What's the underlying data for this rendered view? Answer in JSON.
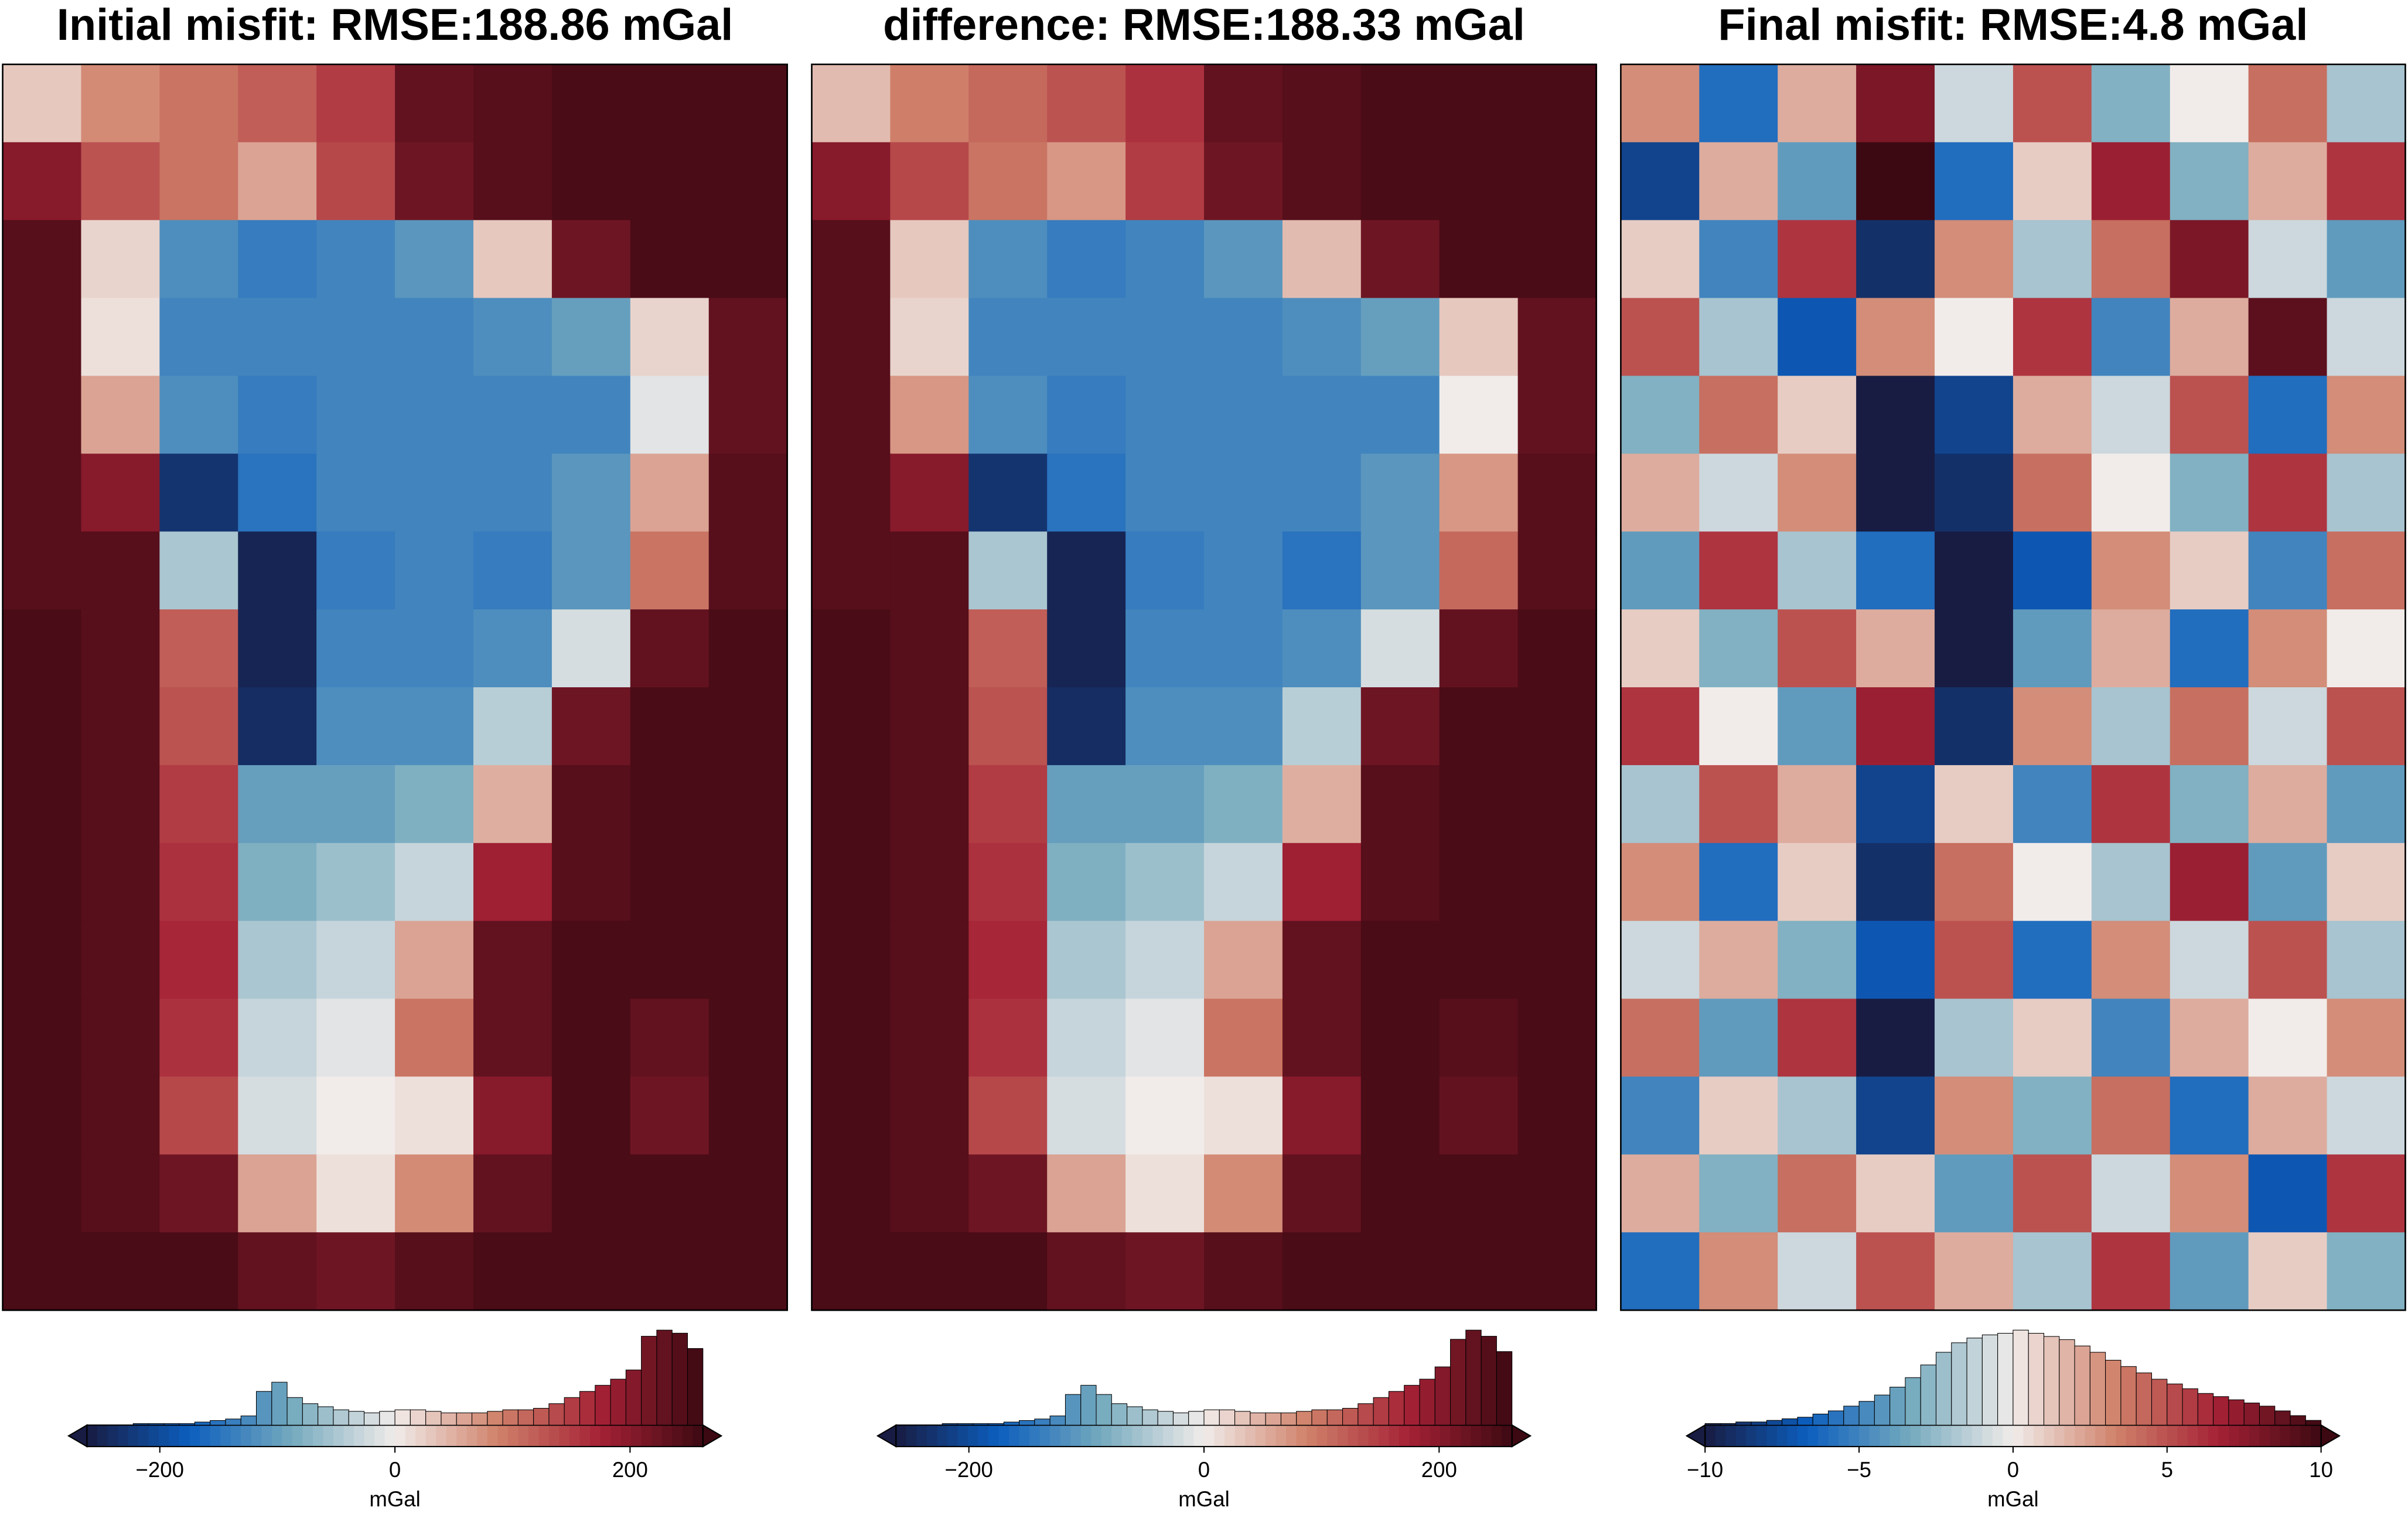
{
  "colormap": [
    "#181c43",
    "#0c5ebe",
    "#75aabe",
    "#f1ecea",
    "#d0826b",
    "#a52135",
    "#3c0912"
  ],
  "chart_data": [
    {
      "type": "heatmap",
      "title": "Initial misfit: RMSE:188.86 mGal",
      "z": [
        [
          30,
          80,
          100,
          120,
          150,
          230,
          240,
          250,
          250,
          250
        ],
        [
          200,
          130,
          100,
          60,
          140,
          220,
          240,
          250,
          250,
          250
        ],
        [
          240,
          20,
          -120,
          -140,
          -130,
          -110,
          30,
          220,
          250,
          250
        ],
        [
          240,
          10,
          -130,
          -130,
          -130,
          -130,
          -120,
          -100,
          20,
          230
        ],
        [
          240,
          60,
          -120,
          -140,
          -130,
          -130,
          -130,
          -130,
          -10,
          230
        ],
        [
          240,
          200,
          -230,
          -150,
          -130,
          -130,
          -130,
          -110,
          60,
          240
        ],
        [
          240,
          240,
          -50,
          -250,
          -140,
          -130,
          -140,
          -110,
          100,
          240
        ],
        [
          250,
          240,
          120,
          -250,
          -130,
          -130,
          -120,
          -20,
          230,
          250
        ],
        [
          250,
          240,
          130,
          -240,
          -120,
          -120,
          -40,
          220,
          250,
          250
        ],
        [
          250,
          240,
          150,
          -100,
          -100,
          -80,
          50,
          240,
          250,
          250
        ],
        [
          250,
          240,
          160,
          -80,
          -60,
          -30,
          180,
          240,
          250,
          250
        ],
        [
          250,
          240,
          170,
          -50,
          -30,
          60,
          230,
          250,
          250,
          250
        ],
        [
          250,
          240,
          160,
          -30,
          -10,
          100,
          230,
          250,
          230,
          250
        ],
        [
          250,
          240,
          140,
          -20,
          0,
          10,
          200,
          250,
          220,
          250
        ],
        [
          250,
          240,
          220,
          60,
          10,
          80,
          230,
          250,
          250,
          250
        ],
        [
          250,
          250,
          250,
          230,
          220,
          240,
          250,
          250,
          250,
          250
        ]
      ],
      "zlim": [
        -262,
        262
      ],
      "colorbar_ticks": [
        {
          "value": -200,
          "label": "−200"
        },
        0,
        200
      ],
      "colorbar_label": "mGal",
      "hist_counts": [
        0,
        0,
        0,
        1,
        1,
        1,
        1,
        2,
        3,
        4,
        6,
        22,
        28,
        18,
        14,
        12,
        10,
        9,
        8,
        9,
        10,
        10,
        9,
        8,
        8,
        8,
        9,
        10,
        10,
        11,
        14,
        18,
        22,
        26,
        30,
        36,
        58,
        62,
        60,
        50
      ]
    },
    {
      "type": "heatmap",
      "title": "difference: RMSE:188.33 mGal",
      "z": [
        [
          40,
          90,
          110,
          130,
          160,
          230,
          240,
          250,
          250,
          250
        ],
        [
          200,
          140,
          100,
          70,
          150,
          220,
          240,
          250,
          250,
          250
        ],
        [
          240,
          30,
          -120,
          -140,
          -130,
          -110,
          40,
          220,
          250,
          250
        ],
        [
          240,
          20,
          -130,
          -130,
          -130,
          -130,
          -120,
          -100,
          30,
          230
        ],
        [
          240,
          70,
          -120,
          -140,
          -130,
          -130,
          -130,
          -130,
          0,
          230
        ],
        [
          240,
          200,
          -230,
          -150,
          -130,
          -130,
          -130,
          -110,
          70,
          240
        ],
        [
          240,
          240,
          -50,
          -250,
          -140,
          -130,
          -150,
          -110,
          110,
          240
        ],
        [
          250,
          240,
          120,
          -250,
          -130,
          -130,
          -120,
          -20,
          230,
          250
        ],
        [
          250,
          240,
          130,
          -240,
          -120,
          -120,
          -40,
          220,
          250,
          250
        ],
        [
          250,
          240,
          150,
          -100,
          -100,
          -80,
          50,
          240,
          250,
          250
        ],
        [
          250,
          240,
          160,
          -80,
          -60,
          -30,
          180,
          240,
          250,
          250
        ],
        [
          250,
          240,
          170,
          -50,
          -30,
          60,
          230,
          250,
          250,
          250
        ],
        [
          250,
          240,
          160,
          -30,
          -10,
          100,
          230,
          250,
          240,
          250
        ],
        [
          250,
          240,
          140,
          -20,
          0,
          10,
          200,
          250,
          230,
          250
        ],
        [
          250,
          240,
          220,
          60,
          10,
          80,
          230,
          250,
          250,
          250
        ],
        [
          250,
          250,
          250,
          230,
          220,
          240,
          250,
          250,
          250,
          250
        ]
      ],
      "zlim": [
        -262,
        262
      ],
      "colorbar_ticks": [
        {
          "value": -200,
          "label": "−200"
        },
        0,
        200
      ],
      "colorbar_label": "mGal",
      "hist_counts": [
        0,
        0,
        0,
        1,
        1,
        1,
        1,
        2,
        3,
        4,
        6,
        20,
        26,
        20,
        14,
        12,
        10,
        9,
        8,
        9,
        10,
        10,
        9,
        8,
        8,
        8,
        9,
        10,
        10,
        11,
        14,
        18,
        22,
        26,
        30,
        38,
        56,
        62,
        58,
        48
      ]
    },
    {
      "type": "heatmap",
      "title": "Final misfit: RMSE:4.8 mGal",
      "z": [
        [
          3,
          -6,
          2,
          8,
          -1,
          5,
          -3,
          0,
          4,
          -2
        ],
        [
          -8,
          2,
          -4,
          10,
          -6,
          1,
          7,
          -3,
          2,
          6
        ],
        [
          1,
          -5,
          6,
          -9,
          3,
          -2,
          4,
          8,
          -1,
          -4
        ],
        [
          5,
          -2,
          -7,
          3,
          0,
          6,
          -5,
          2,
          9,
          -1
        ],
        [
          -3,
          4,
          1,
          -10,
          -8,
          2,
          -1,
          5,
          -6,
          3
        ],
        [
          2,
          -1,
          3,
          -10,
          -9,
          4,
          0,
          -3,
          6,
          -2
        ],
        [
          -4,
          6,
          -2,
          -6,
          -10,
          -7,
          3,
          1,
          -5,
          4
        ],
        [
          1,
          -3,
          5,
          2,
          -10,
          -4,
          2,
          -6,
          3,
          0
        ],
        [
          6,
          0,
          -4,
          7,
          -9,
          3,
          -2,
          4,
          -1,
          5
        ],
        [
          -2,
          5,
          2,
          -8,
          1,
          -5,
          6,
          -3,
          2,
          -4
        ],
        [
          3,
          -6,
          1,
          -9,
          4,
          0,
          -2,
          7,
          -4,
          1
        ],
        [
          -1,
          2,
          -3,
          -7,
          5,
          -6,
          3,
          -1,
          5,
          -2
        ],
        [
          4,
          -4,
          6,
          -10,
          -2,
          1,
          -5,
          2,
          0,
          3
        ],
        [
          -5,
          1,
          -2,
          -8,
          3,
          -3,
          4,
          -6,
          2,
          -1
        ],
        [
          2,
          -3,
          4,
          1,
          -4,
          5,
          -1,
          3,
          -7,
          6
        ],
        [
          -6,
          3,
          -1,
          5,
          2,
          -2,
          6,
          -4,
          1,
          -3
        ]
      ],
      "zlim": [
        -10,
        10
      ],
      "colorbar_ticks": [
        {
          "value": -10,
          "label": "−10"
        },
        {
          "value": -5,
          "label": "−5"
        },
        0,
        5,
        10
      ],
      "colorbar_label": "mGal",
      "hist_counts": [
        1,
        1,
        2,
        2,
        3,
        4,
        5,
        7,
        9,
        12,
        15,
        19,
        24,
        30,
        38,
        46,
        52,
        55,
        57,
        58,
        60,
        58,
        56,
        54,
        50,
        46,
        41,
        37,
        33,
        29,
        26,
        23,
        20,
        18,
        16,
        14,
        12,
        9,
        6,
        3
      ]
    }
  ]
}
